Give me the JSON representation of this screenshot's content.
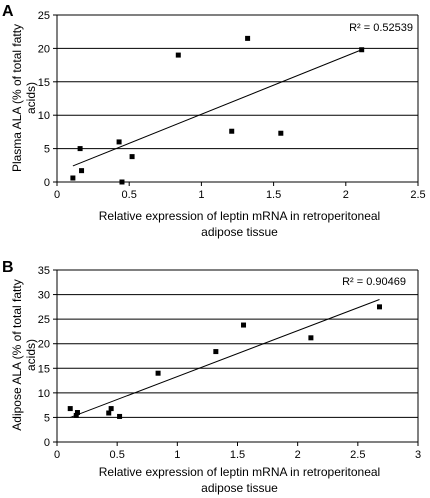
{
  "chart_data": [
    {
      "panel": "A",
      "type": "scatter",
      "xlabel_lines": [
        "Relative expression of leptin mRNA in retroperitoneal",
        "adipose tissue"
      ],
      "ylabel_lines": [
        "Plasma ALA (% of total fatty",
        "acids)"
      ],
      "xlim": [
        0,
        2.5
      ],
      "ylim": [
        0,
        25
      ],
      "xticks": [
        0,
        0.5,
        1,
        1.5,
        2,
        2.5
      ],
      "xtick_labels": [
        "0",
        "0.5",
        "1",
        "1.5",
        "2",
        "2.5"
      ],
      "yticks": [
        0,
        5,
        10,
        15,
        20,
        25
      ],
      "ytick_labels": [
        "0",
        "5",
        "10",
        "15",
        "20",
        "25"
      ],
      "grid": "horizontal",
      "r2_label": "R² = 0.52539",
      "points": [
        {
          "x": 0.11,
          "y": 0.6
        },
        {
          "x": 0.17,
          "y": 1.7
        },
        {
          "x": 0.16,
          "y": 5.0
        },
        {
          "x": 0.43,
          "y": 6.0
        },
        {
          "x": 0.45,
          "y": 0.0
        },
        {
          "x": 0.52,
          "y": 3.8
        },
        {
          "x": 0.84,
          "y": 19.0
        },
        {
          "x": 1.21,
          "y": 7.6
        },
        {
          "x": 1.32,
          "y": 21.5
        },
        {
          "x": 1.55,
          "y": 7.3
        },
        {
          "x": 2.11,
          "y": 19.8
        }
      ],
      "trendline": {
        "x1": 0.11,
        "y1": 2.4,
        "x2": 2.11,
        "y2": 19.8
      }
    },
    {
      "panel": "B",
      "type": "scatter",
      "xlabel_lines": [
        "Relative expression of leptin mRNA in retroperitoneal",
        "adipose tissue"
      ],
      "ylabel_lines": [
        "Adipose ALA (% of total fatty",
        "acids)"
      ],
      "xlim": [
        0,
        3
      ],
      "ylim": [
        0,
        35
      ],
      "xticks": [
        0,
        0.5,
        1,
        1.5,
        2,
        2.5,
        3
      ],
      "xtick_labels": [
        "0",
        "0.5",
        "1",
        "1.5",
        "2",
        "2.5",
        "3"
      ],
      "yticks": [
        0,
        5,
        10,
        15,
        20,
        25,
        30,
        35
      ],
      "ytick_labels": [
        "0",
        "5",
        "10",
        "15",
        "20",
        "25",
        "30",
        "35"
      ],
      "grid": "horizontal",
      "r2_label": "R² = 0.90469",
      "points": [
        {
          "x": 0.11,
          "y": 6.8
        },
        {
          "x": 0.16,
          "y": 5.4
        },
        {
          "x": 0.17,
          "y": 6.0
        },
        {
          "x": 0.43,
          "y": 5.9
        },
        {
          "x": 0.45,
          "y": 6.8
        },
        {
          "x": 0.52,
          "y": 5.2
        },
        {
          "x": 0.84,
          "y": 14.0
        },
        {
          "x": 1.32,
          "y": 18.4
        },
        {
          "x": 1.55,
          "y": 23.8
        },
        {
          "x": 2.11,
          "y": 21.2
        },
        {
          "x": 2.68,
          "y": 27.5
        }
      ],
      "trendline": {
        "x1": 0.11,
        "y1": 5.0,
        "x2": 2.68,
        "y2": 29.0
      }
    }
  ]
}
